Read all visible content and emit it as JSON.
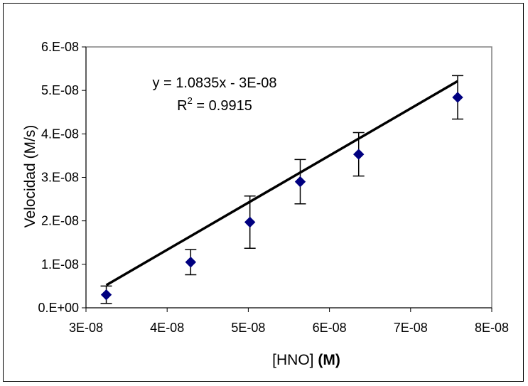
{
  "chart_data": {
    "type": "scatter",
    "title": "",
    "xlabel": "[HNO]",
    "xlabel_bold": "(M)",
    "ylabel": "Velocidad (M/s)",
    "xlim": [
      3e-08,
      8e-08
    ],
    "ylim": [
      0,
      6e-08
    ],
    "x_ticks": [
      "3E-08",
      "4E-08",
      "5E-08",
      "6E-08",
      "7E-08",
      "8E-08"
    ],
    "y_ticks": [
      "0.E+00",
      "1.E-08",
      "2.E-08",
      "3.E-08",
      "4.E-08",
      "5.E-08",
      "6.E-08"
    ],
    "grid": false,
    "series": [
      {
        "marker": "diamond",
        "color": "#000080",
        "points": [
          {
            "x": 3.25e-08,
            "y": 3e-09,
            "err": 2e-09
          },
          {
            "x": 4.29e-08,
            "y": 1.05e-08,
            "err": 2.9e-09
          },
          {
            "x": 5.02e-08,
            "y": 1.97e-08,
            "err": 6e-09
          },
          {
            "x": 5.64e-08,
            "y": 2.9e-08,
            "err": 5.1e-09
          },
          {
            "x": 6.36e-08,
            "y": 3.53e-08,
            "err": 5e-09
          },
          {
            "x": 7.58e-08,
            "y": 4.84e-08,
            "err": 5e-09
          }
        ]
      }
    ],
    "trendline": {
      "slope": 1.0835,
      "intercept": -3e-08,
      "x_range": [
        3.25e-08,
        7.58e-08
      ],
      "color": "#000000",
      "equation_label": "y = 1.0835x - 3E-08",
      "r2_prefix": "R",
      "r2_sup": "2",
      "r2_value": " = 0.9915"
    }
  }
}
